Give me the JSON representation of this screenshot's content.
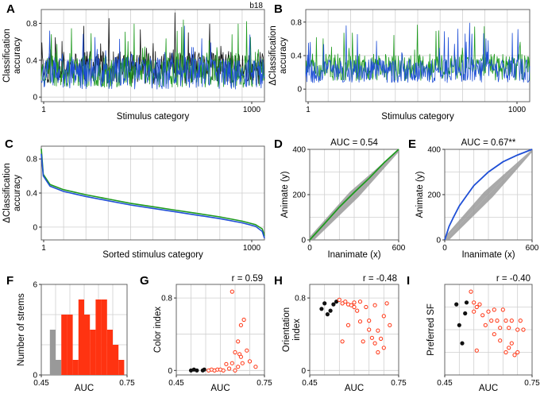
{
  "figure": {
    "panel_letters": [
      "A",
      "B",
      "C",
      "D",
      "E",
      "F",
      "G",
      "H",
      "I"
    ],
    "colors": {
      "blue": "#1f4fd6",
      "green": "#1e9a1e",
      "black": "#111111",
      "gray": "#999999",
      "red": "#ff3311"
    }
  },
  "chart_data": [
    {
      "panel": "A",
      "type": "line",
      "tag": "b18",
      "xlabel": "Stimulus category",
      "ylabel": "Classification accuracy",
      "xticks": [
        "1",
        "1000"
      ],
      "yticks": [
        "0",
        "0.4",
        "0.8"
      ],
      "xlim": [
        1,
        1000
      ],
      "ylim": [
        -0.05,
        0.95
      ],
      "series": [
        {
          "name": "black",
          "color": "#111111",
          "mean": 0.32,
          "noise": 0.22,
          "seed": 11
        },
        {
          "name": "green",
          "color": "#1e9a1e",
          "mean": 0.28,
          "noise": 0.22,
          "seed": 23
        },
        {
          "name": "blue",
          "color": "#1f4fd6",
          "mean": 0.26,
          "noise": 0.22,
          "seed": 37
        }
      ]
    },
    {
      "panel": "B",
      "type": "line",
      "xlabel": "Stimulus category",
      "ylabel": "ΔClassification accuracy",
      "xticks": [
        "1",
        "1000"
      ],
      "yticks": [
        "0",
        "0.4",
        "0.8"
      ],
      "xlim": [
        1,
        1000
      ],
      "ylim": [
        -0.15,
        0.95
      ],
      "series": [
        {
          "name": "green",
          "color": "#1e9a1e",
          "mean": 0.26,
          "noise": 0.2,
          "seed": 51
        },
        {
          "name": "blue",
          "color": "#1f4fd6",
          "mean": 0.22,
          "noise": 0.18,
          "seed": 67
        }
      ]
    },
    {
      "panel": "C",
      "type": "line",
      "xlabel": "Sorted stimulus category",
      "ylabel": "ΔClassification accuracy",
      "xticks": [
        "1",
        "1000"
      ],
      "yticks": [
        "0",
        "0.4",
        "0.8"
      ],
      "xlim": [
        1,
        1000
      ],
      "ylim": [
        -0.15,
        0.95
      ],
      "x": [
        1,
        10,
        40,
        100,
        200,
        300,
        400,
        500,
        600,
        700,
        800,
        900,
        960,
        990,
        1000
      ],
      "series": [
        {
          "name": "green",
          "color": "#1e9a1e",
          "values": [
            0.92,
            0.62,
            0.5,
            0.44,
            0.38,
            0.33,
            0.28,
            0.24,
            0.2,
            0.16,
            0.12,
            0.07,
            0.03,
            -0.02,
            -0.1
          ]
        },
        {
          "name": "blue",
          "color": "#1f4fd6",
          "values": [
            0.86,
            0.6,
            0.48,
            0.42,
            0.36,
            0.31,
            0.26,
            0.22,
            0.18,
            0.14,
            0.1,
            0.05,
            0.01,
            -0.05,
            -0.13
          ]
        }
      ]
    },
    {
      "panel": "D",
      "type": "line",
      "title": "AUC = 0.54",
      "xlabel": "Inanimate (x)",
      "ylabel": "Animate (y)",
      "xticks": [
        "0",
        "600"
      ],
      "yticks": [
        "0",
        "200",
        "400"
      ],
      "xlim": [
        0,
        600
      ],
      "ylim": [
        0,
        400
      ],
      "shuffle_band": "gray",
      "series": [
        {
          "name": "green",
          "color": "#1e9a1e",
          "x": [
            0,
            100,
            200,
            300,
            400,
            500,
            600
          ],
          "y": [
            0,
            72,
            145,
            210,
            272,
            340,
            400
          ]
        }
      ]
    },
    {
      "panel": "E",
      "type": "line",
      "title": "AUC = 0.67**",
      "xlabel": "Inanimate (x)",
      "ylabel": "Animate (y)",
      "xticks": [
        "0",
        "600"
      ],
      "yticks": [
        "0",
        "200",
        "400"
      ],
      "xlim": [
        0,
        600
      ],
      "ylim": [
        0,
        400
      ],
      "shuffle_band": "gray",
      "series": [
        {
          "name": "blue",
          "color": "#1f4fd6",
          "x": [
            0,
            30,
            60,
            100,
            150,
            200,
            300,
            400,
            500,
            560,
            600
          ],
          "y": [
            0,
            60,
            100,
            150,
            195,
            240,
            300,
            345,
            375,
            390,
            400
          ]
        }
      ]
    },
    {
      "panel": "F",
      "type": "bar",
      "xlabel": "AUC",
      "ylabel": "Number of strems",
      "xticks": [
        "0.45",
        "0.75"
      ],
      "yticks": [
        "0",
        "6"
      ],
      "xlim": [
        0.45,
        0.75
      ],
      "ylim": [
        0,
        6
      ],
      "bin_width": 0.02,
      "series": [
        {
          "name": "gray",
          "color": "#999999",
          "bins": [
            0.49,
            0.51
          ],
          "values": [
            3,
            1
          ]
        },
        {
          "name": "red",
          "color": "#ff3311",
          "bins": [
            0.53,
            0.55,
            0.57,
            0.59,
            0.61,
            0.63,
            0.65,
            0.67,
            0.69,
            0.71,
            0.73
          ],
          "values": [
            4,
            4,
            1,
            5,
            4,
            3,
            5,
            5,
            3,
            2,
            1
          ]
        }
      ]
    },
    {
      "panel": "G",
      "type": "scatter",
      "title": "r = 0.59",
      "xlabel": "AUC",
      "ylabel": "Color index",
      "xticks": [
        "0.45",
        "0.75"
      ],
      "yticks": [
        "0",
        "0.8"
      ],
      "xlim": [
        0.45,
        0.75
      ],
      "ylim": [
        -0.05,
        0.95
      ],
      "series": [
        {
          "name": "black",
          "color": "#111111",
          "filled": true,
          "x": [
            0.5,
            0.51,
            0.52,
            0.54,
            0.545
          ],
          "y": [
            0.0,
            0.01,
            0.0,
            0.0,
            0.01
          ]
        },
        {
          "name": "red",
          "color": "#ff3311",
          "filled": false,
          "x": [
            0.56,
            0.57,
            0.58,
            0.59,
            0.6,
            0.61,
            0.62,
            0.63,
            0.64,
            0.64,
            0.65,
            0.65,
            0.66,
            0.66,
            0.665,
            0.67,
            0.67,
            0.675,
            0.68,
            0.69,
            0.7,
            0.72
          ],
          "y": [
            0.0,
            0.01,
            0.0,
            0.01,
            0.01,
            0.0,
            0.07,
            0.02,
            0.87,
            0.08,
            0.0,
            0.2,
            0.32,
            0.04,
            0.18,
            0.5,
            0.15,
            0.08,
            0.56,
            0.22,
            0.1,
            0.04
          ]
        }
      ]
    },
    {
      "panel": "H",
      "type": "scatter",
      "title": "r = -0.48",
      "xlabel": "AUC",
      "ylabel": "Orientation index",
      "xticks": [
        "0.45",
        "0.75"
      ],
      "yticks": [
        "0",
        "0.8"
      ],
      "xlim": [
        0.45,
        0.75
      ],
      "ylim": [
        -0.05,
        0.95
      ],
      "series": [
        {
          "name": "black",
          "color": "#111111",
          "filled": true,
          "x": [
            0.49,
            0.5,
            0.51,
            0.52,
            0.53,
            0.54
          ],
          "y": [
            0.68,
            0.74,
            0.62,
            0.66,
            0.73,
            0.76
          ]
        },
        {
          "name": "red",
          "color": "#ff3311",
          "filled": false,
          "x": [
            0.55,
            0.56,
            0.57,
            0.58,
            0.59,
            0.6,
            0.6,
            0.61,
            0.62,
            0.62,
            0.63,
            0.64,
            0.65,
            0.65,
            0.66,
            0.67,
            0.67,
            0.68,
            0.68,
            0.69,
            0.7,
            0.7,
            0.71,
            0.72,
            0.56,
            0.58
          ],
          "y": [
            0.78,
            0.74,
            0.76,
            0.73,
            0.72,
            0.75,
            0.7,
            0.66,
            0.76,
            0.54,
            0.32,
            0.7,
            0.55,
            0.45,
            0.36,
            0.72,
            0.3,
            0.44,
            0.2,
            0.35,
            0.6,
            0.25,
            0.74,
            0.5,
            0.32,
            0.5
          ]
        }
      ]
    },
    {
      "panel": "I",
      "type": "scatter",
      "title": "r = -0.40",
      "xlabel": "AUC",
      "ylabel": "Preferred SF",
      "xticks": [
        "0.45",
        "0.75"
      ],
      "yticks": [],
      "xlim": [
        0.45,
        0.75
      ],
      "ylim": [
        0,
        1
      ],
      "series": [
        {
          "name": "black",
          "color": "#111111",
          "filled": true,
          "x": [
            0.49,
            0.5,
            0.51,
            0.52,
            0.525
          ],
          "y": [
            0.78,
            0.55,
            0.35,
            0.68,
            0.8
          ]
        },
        {
          "name": "red",
          "color": "#ff3311",
          "filled": false,
          "x": [
            0.54,
            0.55,
            0.55,
            0.56,
            0.57,
            0.58,
            0.59,
            0.6,
            0.61,
            0.62,
            0.62,
            0.63,
            0.64,
            0.64,
            0.65,
            0.66,
            0.66,
            0.67,
            0.67,
            0.68,
            0.68,
            0.69,
            0.7,
            0.7,
            0.71,
            0.72,
            0.56
          ],
          "y": [
            0.92,
            0.8,
            0.7,
            0.75,
            0.78,
            0.66,
            0.55,
            0.7,
            0.6,
            0.72,
            0.45,
            0.6,
            0.52,
            0.38,
            0.72,
            0.6,
            0.25,
            0.52,
            0.3,
            0.6,
            0.35,
            0.22,
            0.5,
            0.25,
            0.6,
            0.5,
            0.27
          ]
        }
      ]
    }
  ]
}
